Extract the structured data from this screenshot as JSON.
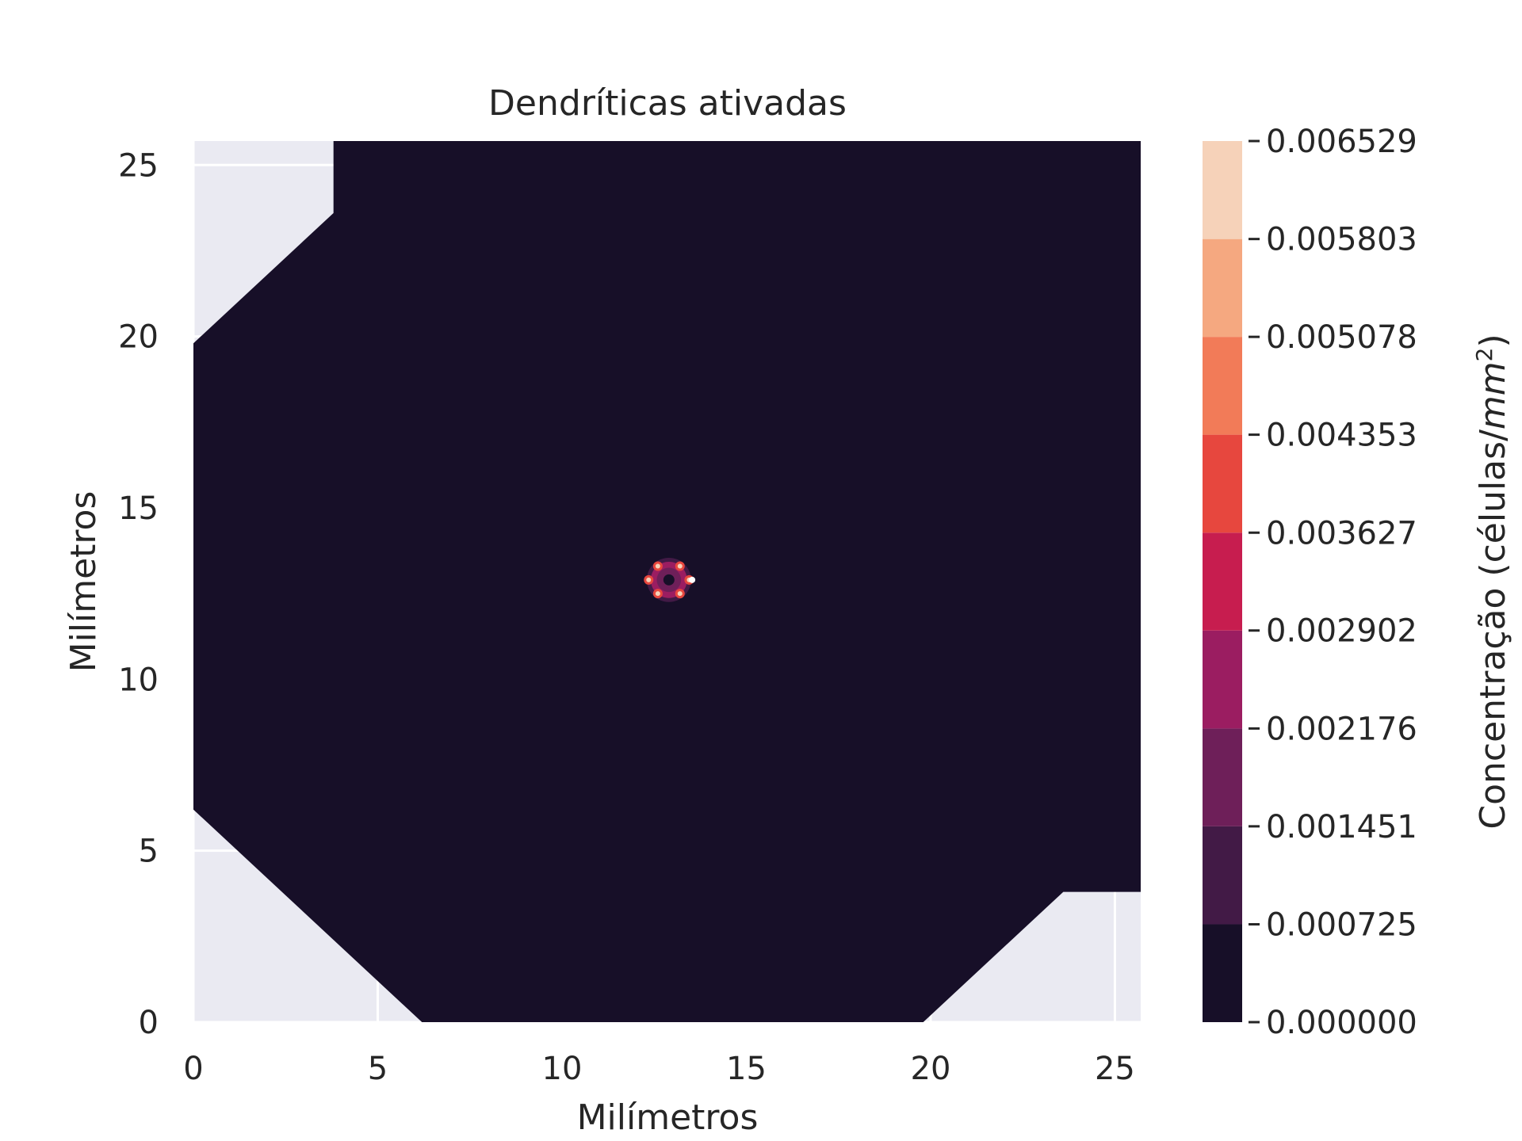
{
  "chart_data": {
    "type": "contour",
    "title": "Dendríticas ativadas",
    "xlabel": "Milímetros",
    "ylabel": "Milímetros",
    "xlim": [
      0,
      25.7
    ],
    "ylim": [
      0,
      25.7
    ],
    "x_ticks": [
      0,
      5,
      10,
      15,
      20,
      25
    ],
    "y_ticks": [
      0,
      5,
      10,
      15,
      20,
      25
    ],
    "x_tick_labels": [
      "0",
      "5",
      "10",
      "15",
      "20",
      "25"
    ],
    "y_tick_labels": [
      "0",
      "5",
      "10",
      "15",
      "20",
      "25"
    ],
    "grid": true,
    "background_color": "#eaeaf2",
    "domain_polygon": [
      [
        3.8,
        25.7
      ],
      [
        25.7,
        25.7
      ],
      [
        25.7,
        3.8
      ],
      [
        23.6,
        3.8
      ],
      [
        19.8,
        0
      ],
      [
        6.2,
        0
      ],
      [
        0,
        6.2
      ],
      [
        0,
        19.8
      ],
      [
        3.8,
        23.6
      ]
    ],
    "hotspot": {
      "center": [
        12.9,
        12.9
      ],
      "radius": 0.6,
      "peak_points": [
        [
          12.6,
          13.3
        ],
        [
          13.2,
          13.3
        ],
        [
          12.35,
          12.9
        ],
        [
          13.45,
          12.9
        ],
        [
          12.6,
          12.5
        ],
        [
          13.2,
          12.5
        ]
      ]
    },
    "colorbar": {
      "label": "Concentração (células/mm²)",
      "label_main": "Concentração (células/",
      "label_unit": "mm",
      "label_exp": "2",
      "label_close": ")",
      "levels": [
        0.0,
        0.000725,
        0.001451,
        0.002176,
        0.002902,
        0.003627,
        0.004353,
        0.005078,
        0.005803,
        0.006529
      ],
      "tick_labels": [
        "0.000000",
        "0.000725",
        "0.001451",
        "0.002176",
        "0.002902",
        "0.003627",
        "0.004353",
        "0.005078",
        "0.005803",
        "0.006529"
      ],
      "colors": [
        "#170f28",
        "#421a46",
        "#6e1f59",
        "#9b1d61",
        "#c71d4f",
        "#e7473e",
        "#f27b58",
        "#f5a880",
        "#f6d2b9"
      ]
    }
  }
}
